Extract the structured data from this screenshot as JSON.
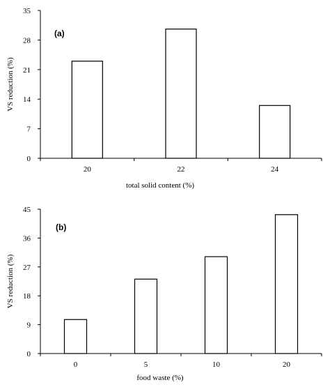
{
  "chart_data": [
    {
      "type": "bar",
      "panel_label": "(a)",
      "xlabel": "total solid content (%)",
      "ylabel": "VS reduction (%)",
      "categories": [
        "20",
        "22",
        "24"
      ],
      "values": [
        23,
        30.6,
        12.5
      ],
      "ylim": [
        0,
        35
      ],
      "yticks": [
        0,
        7,
        14,
        21,
        28,
        35
      ],
      "grid": false,
      "bar_fill": "#ffffff",
      "bar_stroke": "#000000"
    },
    {
      "type": "bar",
      "panel_label": "(b)",
      "xlabel": "food waste (%)",
      "ylabel": "VS reduction (%)",
      "categories": [
        "0",
        "5",
        "10",
        "20"
      ],
      "values": [
        10.6,
        23.2,
        30.2,
        43.3
      ],
      "ylim": [
        0,
        45
      ],
      "yticks": [
        0,
        9,
        18,
        27,
        36,
        45
      ],
      "grid": false,
      "bar_fill": "#ffffff",
      "bar_stroke": "#000000"
    }
  ]
}
